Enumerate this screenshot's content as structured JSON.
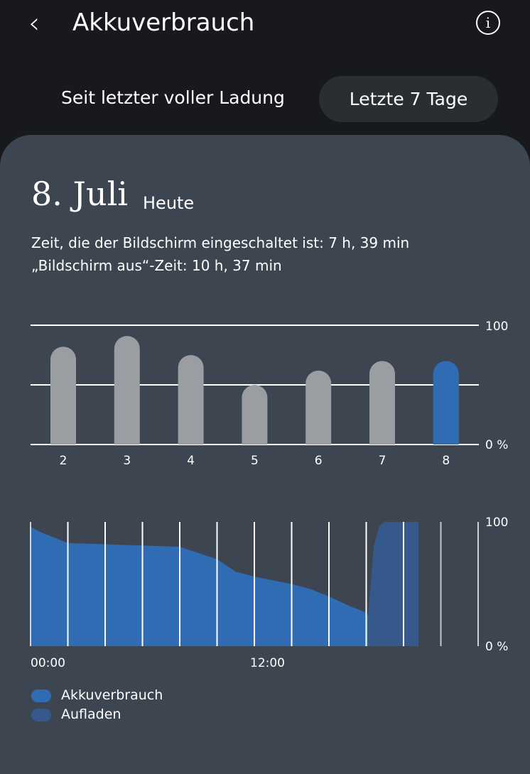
{
  "header": {
    "title": "Akkuverbrauch",
    "back_icon": "chevron-left-icon",
    "info_icon": "info-icon"
  },
  "tabs": [
    {
      "label": "Seit letzter voller Ladung",
      "selected": false
    },
    {
      "label": "Letzte 7 Tage",
      "selected": true
    }
  ],
  "day": {
    "date": "8. Juli",
    "relative": "Heute",
    "screen_on": "Zeit, die der Bildschirm eingeschaltet ist: 7 h, 39 min",
    "screen_off": "„Bildschirm aus“-Zeit: 10 h, 37 min"
  },
  "colors": {
    "usage": "#2f6cb3",
    "charging": "#34598a",
    "bar_gray": "#9a9da2",
    "card": "#3d4550"
  },
  "chart_data": [
    {
      "type": "bar",
      "categories": [
        "2",
        "3",
        "4",
        "5",
        "6",
        "7",
        "8"
      ],
      "values": [
        82,
        91,
        75,
        50,
        62,
        70,
        70
      ],
      "highlight": "8",
      "ylim": [
        0,
        100
      ],
      "ytick_labels": [
        "100",
        "0 %"
      ],
      "grid": true
    },
    {
      "type": "area",
      "x_unit": "hours",
      "xlim": [
        0,
        24
      ],
      "ylim": [
        0,
        100
      ],
      "xtick_labels": [
        "00:00",
        "12:00"
      ],
      "ytick_labels": [
        "100",
        "0 %"
      ],
      "series": [
        {
          "name": "Akkuverbrauch",
          "x": [
            0,
            0.5,
            1,
            2,
            4,
            6,
            8,
            9,
            10,
            10.5,
            11,
            12,
            13,
            14,
            15,
            16,
            17,
            18,
            18.1
          ],
          "y": [
            96,
            92,
            89,
            83,
            82,
            81,
            80,
            75,
            70,
            65,
            60,
            56,
            53,
            50,
            46,
            40,
            33,
            27,
            25
          ]
        },
        {
          "name": "Aufladen",
          "x": [
            18.1,
            18.4,
            18.7,
            19,
            20.8
          ],
          "y": [
            25,
            80,
            97,
            100,
            100
          ]
        }
      ]
    }
  ],
  "legend": [
    {
      "label": "Akkuverbrauch"
    },
    {
      "label": "Aufladen"
    }
  ]
}
